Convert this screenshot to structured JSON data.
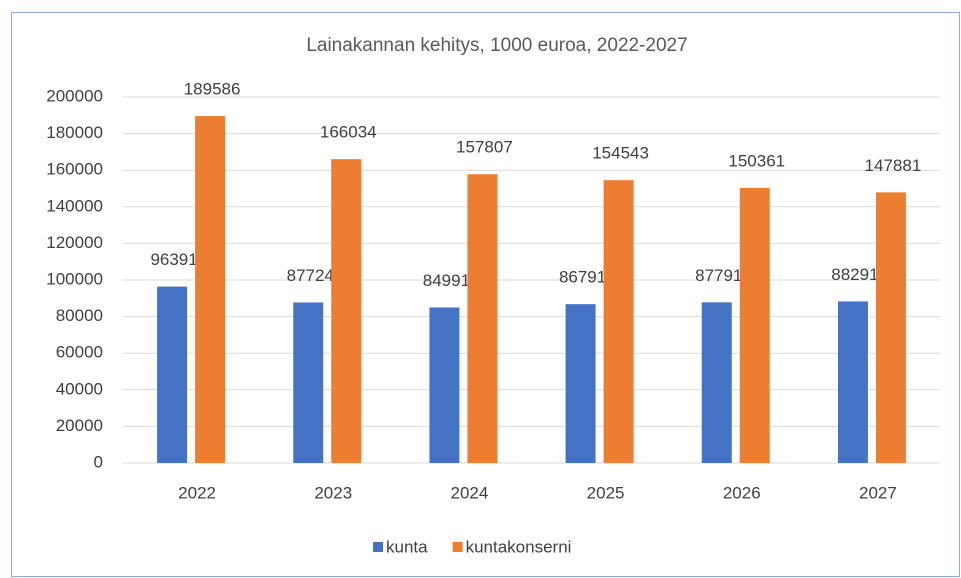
{
  "chart_data": {
    "type": "bar",
    "title": "Lainakannan kehitys, 1000 euroa, 2022-2027",
    "categories": [
      "2022",
      "2023",
      "2024",
      "2025",
      "2026",
      "2027"
    ],
    "series": [
      {
        "name": "kunta",
        "color": "#4472c4",
        "values": [
          96391,
          87724,
          84991,
          86791,
          87791,
          88291
        ]
      },
      {
        "name": "kuntakonserni",
        "color": "#ed7d31",
        "values": [
          189586,
          166034,
          157807,
          154543,
          150361,
          147881
        ]
      }
    ],
    "ylim": [
      0,
      200000
    ],
    "yticks": [
      0,
      20000,
      40000,
      60000,
      80000,
      100000,
      120000,
      140000,
      160000,
      180000,
      200000
    ],
    "grid": true,
    "legend": "bottom"
  }
}
